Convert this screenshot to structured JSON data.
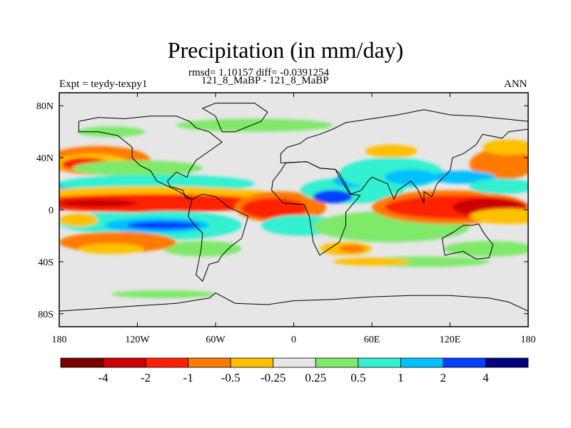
{
  "chart_data": {
    "type": "heatmap",
    "title": "Precipitation (in mm/day)",
    "stats": "rmsd= 1.10157 diff= -0.0391254",
    "cases": "121_8_MaBP - 121_8_MaBP",
    "left_label": "Expt = teydy-texpy1",
    "right_label": "ANN",
    "x_ticks": [
      "180",
      "120W",
      "60W",
      "0",
      "60E",
      "120E",
      "180"
    ],
    "y_ticks": [
      "80N",
      "40N",
      "0",
      "40S",
      "80S"
    ],
    "xlim": [
      -180,
      180
    ],
    "ylim": [
      -90,
      90
    ],
    "contour_levels": [
      "-4",
      "-2",
      "-1",
      "-0.5",
      "-0.25",
      "0.25",
      "0.5",
      "1",
      "2",
      "4"
    ],
    "colors": [
      "#7a0000",
      "#cc0000",
      "#ff2200",
      "#ff7a00",
      "#ffc000",
      "#e6e6e6",
      "#7fe96b",
      "#33f0d0",
      "#00c0ff",
      "#0040ff",
      "#000080"
    ],
    "fields": [
      {
        "bin": 3,
        "lon": -150,
        "lat": 38,
        "rlon": 40,
        "rlat": 11
      },
      {
        "bin": 4,
        "lon": -155,
        "lat": 36,
        "rlon": 28,
        "rlat": 7
      },
      {
        "bin": 2,
        "lon": -160,
        "lat": 35,
        "rlon": 18,
        "rlat": 5
      },
      {
        "bin": 6,
        "lon": -140,
        "lat": 60,
        "rlon": 26,
        "rlat": 4
      },
      {
        "bin": 6,
        "lon": -30,
        "lat": 65,
        "rlon": 60,
        "rlat": 5
      },
      {
        "bin": 6,
        "lon": -120,
        "lat": 32,
        "rlon": 50,
        "rlat": 6
      },
      {
        "bin": 8,
        "lon": -160,
        "lat": 16,
        "rlon": 40,
        "rlat": 6
      },
      {
        "bin": 9,
        "lon": -150,
        "lat": 14,
        "rlon": 22,
        "rlat": 3
      },
      {
        "bin": 7,
        "lon": -105,
        "lat": 20,
        "rlon": 75,
        "rlat": 7
      },
      {
        "bin": 4,
        "lon": -110,
        "lat": 8,
        "rlon": 110,
        "rlat": 10
      },
      {
        "bin": 2,
        "lon": -110,
        "lat": 5,
        "rlon": 95,
        "rlat": 7
      },
      {
        "bin": 1,
        "lon": -150,
        "lat": 5,
        "rlon": 30,
        "rlat": 3
      },
      {
        "bin": 3,
        "lon": -10,
        "lat": 2,
        "rlon": 35,
        "rlat": 12
      },
      {
        "bin": 2,
        "lon": -15,
        "lat": 1,
        "rlon": 25,
        "rlat": 8
      },
      {
        "bin": 7,
        "lon": -140,
        "lat": -10,
        "rlon": 40,
        "rlat": 8
      },
      {
        "bin": 4,
        "lon": -165,
        "lat": -8,
        "rlon": 15,
        "rlat": 5
      },
      {
        "bin": 7,
        "lon": -95,
        "lat": -12,
        "rlon": 55,
        "rlat": 11
      },
      {
        "bin": 8,
        "lon": -105,
        "lat": -12,
        "rlon": 40,
        "rlat": 6
      },
      {
        "bin": 9,
        "lon": -100,
        "lat": -12,
        "rlon": 28,
        "rlat": 3
      },
      {
        "bin": 6,
        "lon": -70,
        "lat": -30,
        "rlon": 30,
        "rlat": 6
      },
      {
        "bin": 3,
        "lon": -135,
        "lat": -25,
        "rlon": 45,
        "rlat": 8
      },
      {
        "bin": 4,
        "lon": -140,
        "lat": -30,
        "rlon": 25,
        "rlat": 4
      },
      {
        "bin": 7,
        "lon": 5,
        "lat": -12,
        "rlon": 30,
        "rlat": 8
      },
      {
        "bin": 7,
        "lon": 45,
        "lat": 15,
        "rlon": 40,
        "rlat": 10
      },
      {
        "bin": 8,
        "lon": 45,
        "lat": 22,
        "rlon": 15,
        "rlat": 5
      },
      {
        "bin": 9,
        "lon": 30,
        "lat": 10,
        "rlon": 15,
        "rlat": 5
      },
      {
        "bin": 7,
        "lon": 75,
        "lat": 28,
        "rlon": 40,
        "rlat": 12
      },
      {
        "bin": 8,
        "lon": 90,
        "lat": 25,
        "rlon": 20,
        "rlat": 6
      },
      {
        "bin": 4,
        "lon": 75,
        "lat": 45,
        "rlon": 20,
        "rlat": 5
      },
      {
        "bin": 6,
        "lon": 75,
        "lat": -13,
        "rlon": 60,
        "rlat": 12
      },
      {
        "bin": 3,
        "lon": 120,
        "lat": 2,
        "rlon": 60,
        "rlat": 13
      },
      {
        "bin": 2,
        "lon": 125,
        "lat": 2,
        "rlon": 55,
        "rlat": 9
      },
      {
        "bin": 1,
        "lon": 150,
        "lat": 2,
        "rlon": 28,
        "rlat": 7
      },
      {
        "bin": 4,
        "lon": 165,
        "lat": -5,
        "rlon": 30,
        "rlat": 6
      },
      {
        "bin": 3,
        "lon": 160,
        "lat": 35,
        "rlon": 25,
        "rlat": 12
      },
      {
        "bin": 4,
        "lon": 165,
        "lat": 48,
        "rlon": 20,
        "rlat": 6
      },
      {
        "bin": 8,
        "lon": 130,
        "lat": 25,
        "rlon": 25,
        "rlat": 5
      },
      {
        "bin": 7,
        "lon": 160,
        "lat": 18,
        "rlon": 25,
        "rlat": 6
      },
      {
        "bin": 6,
        "lon": 150,
        "lat": -30,
        "rlon": 35,
        "rlat": 6
      },
      {
        "bin": 4,
        "lon": 40,
        "lat": -30,
        "rlon": 20,
        "rlat": 5
      },
      {
        "bin": 3,
        "lon": 45,
        "lat": -30,
        "rlon": 10,
        "rlat": 3
      },
      {
        "bin": 6,
        "lon": 100,
        "lat": -40,
        "rlon": 50,
        "rlat": 4
      },
      {
        "bin": 6,
        "lon": -100,
        "lat": -65,
        "rlon": 40,
        "rlat": 3
      },
      {
        "bin": 4,
        "lon": 60,
        "lat": -40,
        "rlon": 30,
        "rlat": 3
      }
    ],
    "continents": [
      [
        [
          -165,
          68
        ],
        [
          -150,
          71
        ],
        [
          -130,
          70
        ],
        [
          -110,
          72
        ],
        [
          -90,
          72
        ],
        [
          -80,
          68
        ],
        [
          -75,
          63
        ],
        [
          -65,
          60
        ],
        [
          -55,
          52
        ],
        [
          -65,
          45
        ],
        [
          -75,
          38
        ],
        [
          -80,
          30
        ],
        [
          -82,
          25
        ],
        [
          -90,
          29
        ],
        [
          -97,
          22
        ],
        [
          -95,
          18
        ],
        [
          -85,
          15
        ],
        [
          -83,
          9
        ],
        [
          -78,
          8
        ],
        [
          -90,
          15
        ],
        [
          -105,
          22
        ],
        [
          -110,
          30
        ],
        [
          -118,
          34
        ],
        [
          -124,
          40
        ],
        [
          -124,
          48
        ],
        [
          -135,
          57
        ],
        [
          -150,
          60
        ],
        [
          -165,
          60
        ],
        [
          -165,
          68
        ]
      ],
      [
        [
          -78,
          8
        ],
        [
          -70,
          12
        ],
        [
          -60,
          10
        ],
        [
          -50,
          2
        ],
        [
          -35,
          -5
        ],
        [
          -37,
          -12
        ],
        [
          -40,
          -22
        ],
        [
          -48,
          -28
        ],
        [
          -55,
          -35
        ],
        [
          -58,
          -40
        ],
        [
          -65,
          -42
        ],
        [
          -68,
          -50
        ],
        [
          -70,
          -55
        ],
        [
          -75,
          -50
        ],
        [
          -73,
          -40
        ],
        [
          -71,
          -30
        ],
        [
          -70,
          -18
        ],
        [
          -76,
          -12
        ],
        [
          -81,
          -5
        ],
        [
          -80,
          0
        ],
        [
          -78,
          8
        ]
      ],
      [
        [
          -10,
          36
        ],
        [
          -10,
          43
        ],
        [
          -5,
          48
        ],
        [
          5,
          51
        ],
        [
          10,
          55
        ],
        [
          20,
          58
        ],
        [
          30,
          62
        ],
        [
          40,
          67
        ],
        [
          60,
          70
        ],
        [
          80,
          73
        ],
        [
          100,
          77
        ],
        [
          120,
          73
        ],
        [
          140,
          72
        ],
        [
          160,
          70
        ],
        [
          180,
          68
        ],
        [
          180,
          62
        ],
        [
          165,
          60
        ],
        [
          160,
          55
        ],
        [
          145,
          58
        ],
        [
          140,
          50
        ],
        [
          130,
          43
        ],
        [
          122,
          40
        ],
        [
          120,
          30
        ],
        [
          110,
          20
        ],
        [
          106,
          10
        ],
        [
          100,
          14
        ],
        [
          100,
          5
        ],
        [
          95,
          16
        ],
        [
          90,
          22
        ],
        [
          80,
          15
        ],
        [
          77,
          8
        ],
        [
          72,
          20
        ],
        [
          60,
          25
        ],
        [
          57,
          22
        ],
        [
          52,
          15
        ],
        [
          44,
          12
        ],
        [
          35,
          28
        ],
        [
          32,
          31
        ],
        [
          20,
          32
        ],
        [
          10,
          37
        ],
        [
          -10,
          36
        ]
      ],
      [
        [
          -17,
          15
        ],
        [
          -16,
          22
        ],
        [
          -10,
          30
        ],
        [
          -6,
          36
        ],
        [
          10,
          37
        ],
        [
          20,
          32
        ],
        [
          32,
          31
        ],
        [
          35,
          25
        ],
        [
          43,
          12
        ],
        [
          51,
          11
        ],
        [
          40,
          -2
        ],
        [
          40,
          -12
        ],
        [
          35,
          -25
        ],
        [
          20,
          -35
        ],
        [
          15,
          -25
        ],
        [
          12,
          -5
        ],
        [
          8,
          4
        ],
        [
          -8,
          5
        ],
        [
          -17,
          15
        ]
      ],
      [
        [
          114,
          -22
        ],
        [
          123,
          -17
        ],
        [
          130,
          -12
        ],
        [
          137,
          -12
        ],
        [
          142,
          -11
        ],
        [
          146,
          -18
        ],
        [
          153,
          -27
        ],
        [
          150,
          -37
        ],
        [
          140,
          -38
        ],
        [
          130,
          -32
        ],
        [
          116,
          -35
        ],
        [
          114,
          -22
        ]
      ],
      [
        [
          -180,
          -78
        ],
        [
          -150,
          -76
        ],
        [
          -120,
          -74
        ],
        [
          -90,
          -72
        ],
        [
          -65,
          -68
        ],
        [
          -60,
          -64
        ],
        [
          -45,
          -72
        ],
        [
          -20,
          -73
        ],
        [
          0,
          -70
        ],
        [
          30,
          -69
        ],
        [
          60,
          -67
        ],
        [
          90,
          -66
        ],
        [
          120,
          -66
        ],
        [
          150,
          -68
        ],
        [
          165,
          -71
        ],
        [
          180,
          -78
        ],
        [
          180,
          -90
        ],
        [
          -180,
          -90
        ],
        [
          -180,
          -78
        ]
      ],
      [
        [
          -55,
          60
        ],
        [
          -45,
          60
        ],
        [
          -25,
          68
        ],
        [
          -20,
          75
        ],
        [
          -30,
          82
        ],
        [
          -60,
          82
        ],
        [
          -70,
          78
        ],
        [
          -60,
          72
        ],
        [
          -55,
          60
        ]
      ]
    ]
  }
}
